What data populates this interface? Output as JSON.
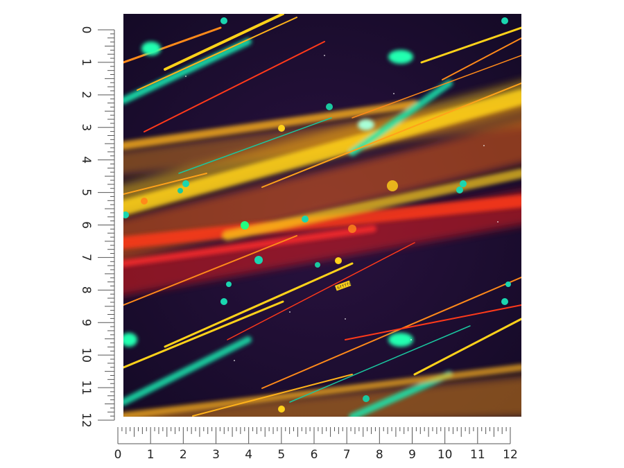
{
  "vertical_ruler": {
    "labels": [
      "0",
      "1",
      "2",
      "3",
      "4",
      "5",
      "6",
      "7",
      "8",
      "9",
      "10",
      "11",
      "12"
    ]
  },
  "horizontal_ruler": {
    "labels": [
      "0",
      "1",
      "2",
      "3",
      "4",
      "5",
      "6",
      "7",
      "8",
      "9",
      "10",
      "11",
      "12"
    ]
  },
  "swatch": {
    "pattern": "neon light streaks",
    "colors": {
      "background": "#1a0d2e",
      "yellow": "#ffd21a",
      "orange": "#ff8a1a",
      "red": "#ff2a2a",
      "teal": "#1ad6b0",
      "green": "#22ffb0"
    },
    "sticker_text": "6ffffd"
  }
}
